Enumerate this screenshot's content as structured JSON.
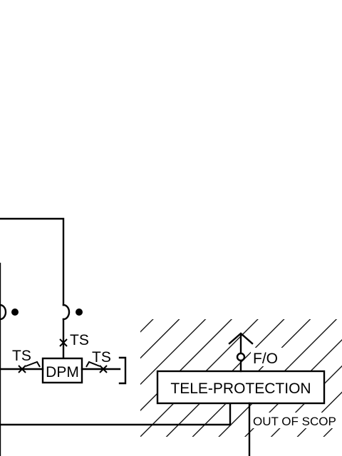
{
  "labels": {
    "ts_left": "TS",
    "ts_top": "TS",
    "ts_right": "TS",
    "dpm": "DPM",
    "fo": "F/O",
    "teleprotection": "TELE-PROTECTION",
    "out_of_scope": "OUT OF SCOP"
  }
}
